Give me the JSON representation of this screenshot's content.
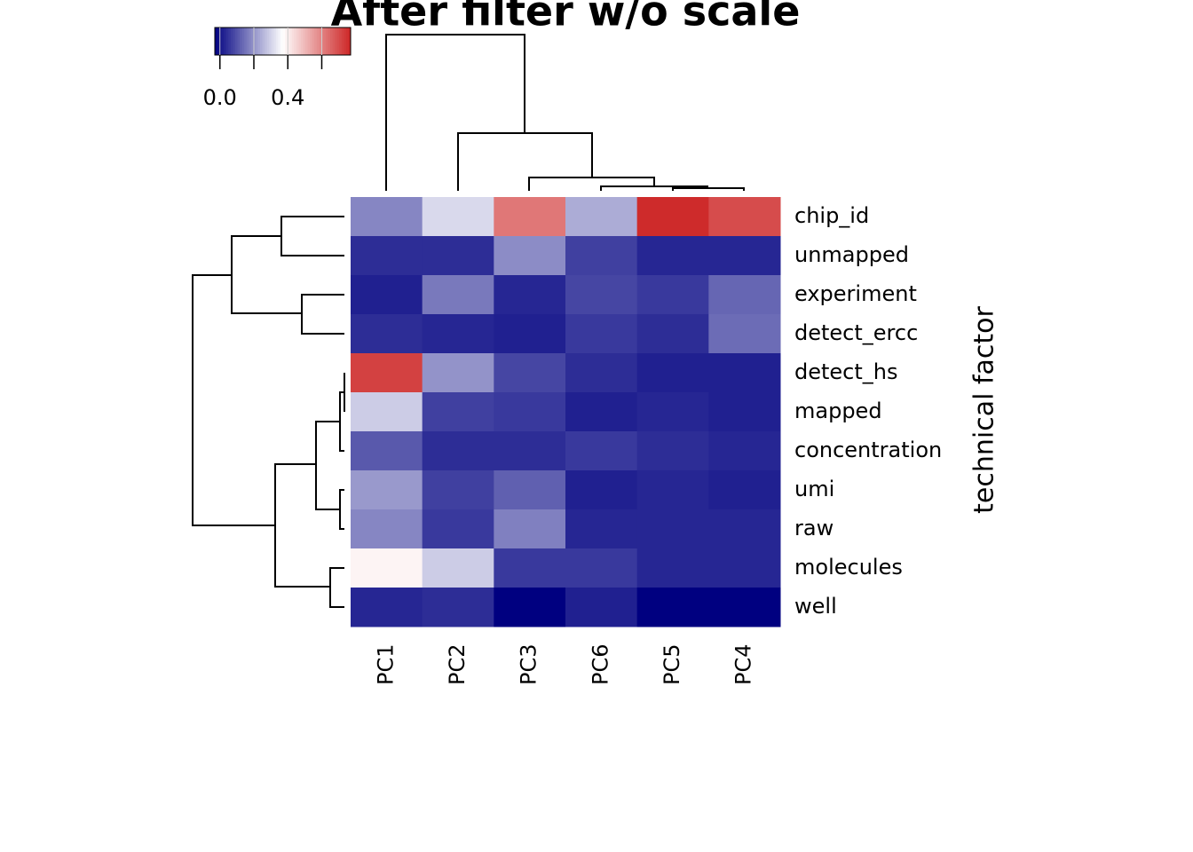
{
  "chart_data": {
    "type": "heatmap",
    "title": "After filter w/o scale",
    "y_label": "technical factor",
    "columns": [
      "PC1",
      "PC2",
      "PC3",
      "PC6",
      "PC5",
      "PC4"
    ],
    "rows": [
      "chip_id",
      "unmapped",
      "experiment",
      "detect_ercc",
      "detect_hs",
      "mapped",
      "concentration",
      "umi",
      "raw",
      "molecules",
      "well"
    ],
    "values": [
      [
        0.18,
        0.31,
        0.62,
        0.24,
        0.76,
        0.7
      ],
      [
        0.04,
        0.04,
        0.19,
        0.07,
        0.03,
        0.03
      ],
      [
        0.02,
        0.16,
        0.03,
        0.08,
        0.06,
        0.13
      ],
      [
        0.04,
        0.03,
        0.02,
        0.06,
        0.04,
        0.14
      ],
      [
        0.72,
        0.2,
        0.08,
        0.04,
        0.02,
        0.02
      ],
      [
        0.29,
        0.07,
        0.06,
        0.02,
        0.03,
        0.02
      ],
      [
        0.11,
        0.04,
        0.04,
        0.06,
        0.04,
        0.03
      ],
      [
        0.21,
        0.07,
        0.12,
        0.02,
        0.03,
        0.02
      ],
      [
        0.18,
        0.06,
        0.17,
        0.03,
        0.03,
        0.03
      ],
      [
        0.39,
        0.29,
        0.06,
        0.06,
        0.03,
        0.03
      ],
      [
        0.03,
        0.04,
        -0.03,
        0.02,
        -0.03,
        -0.03
      ]
    ],
    "zlim": [
      -0.03,
      0.77
    ],
    "colors": [
      "#000080",
      "#ffffff",
      "#cd2626"
    ],
    "key_ticks": [
      {
        "value": 0.0,
        "label": "0.0"
      },
      {
        "value": 0.2,
        "label": null
      },
      {
        "value": 0.4,
        "label": "0.4"
      },
      {
        "value": 0.6,
        "label": null
      }
    ]
  }
}
